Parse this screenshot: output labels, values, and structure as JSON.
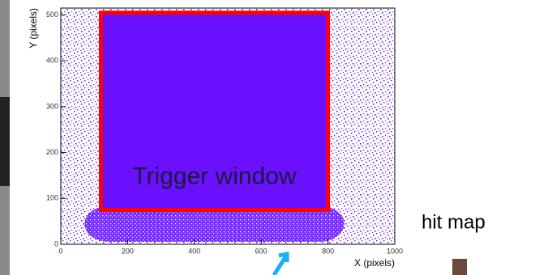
{
  "chart_data": {
    "type": "hitmap",
    "xlabel": "X (pixels)",
    "ylabel": "Y (pixels)",
    "xlim": [
      0,
      1000
    ],
    "ylim": [
      0,
      515
    ],
    "xticks": [
      0,
      200,
      400,
      600,
      800,
      1000
    ],
    "yticks": [
      0,
      100,
      200,
      300,
      400,
      500
    ],
    "color": "#6a10ff",
    "window": {
      "label": "Trigger window",
      "x": [
        120,
        800
      ],
      "y": [
        75,
        505
      ],
      "color": "#ff0000"
    }
  },
  "caption": "hit map"
}
